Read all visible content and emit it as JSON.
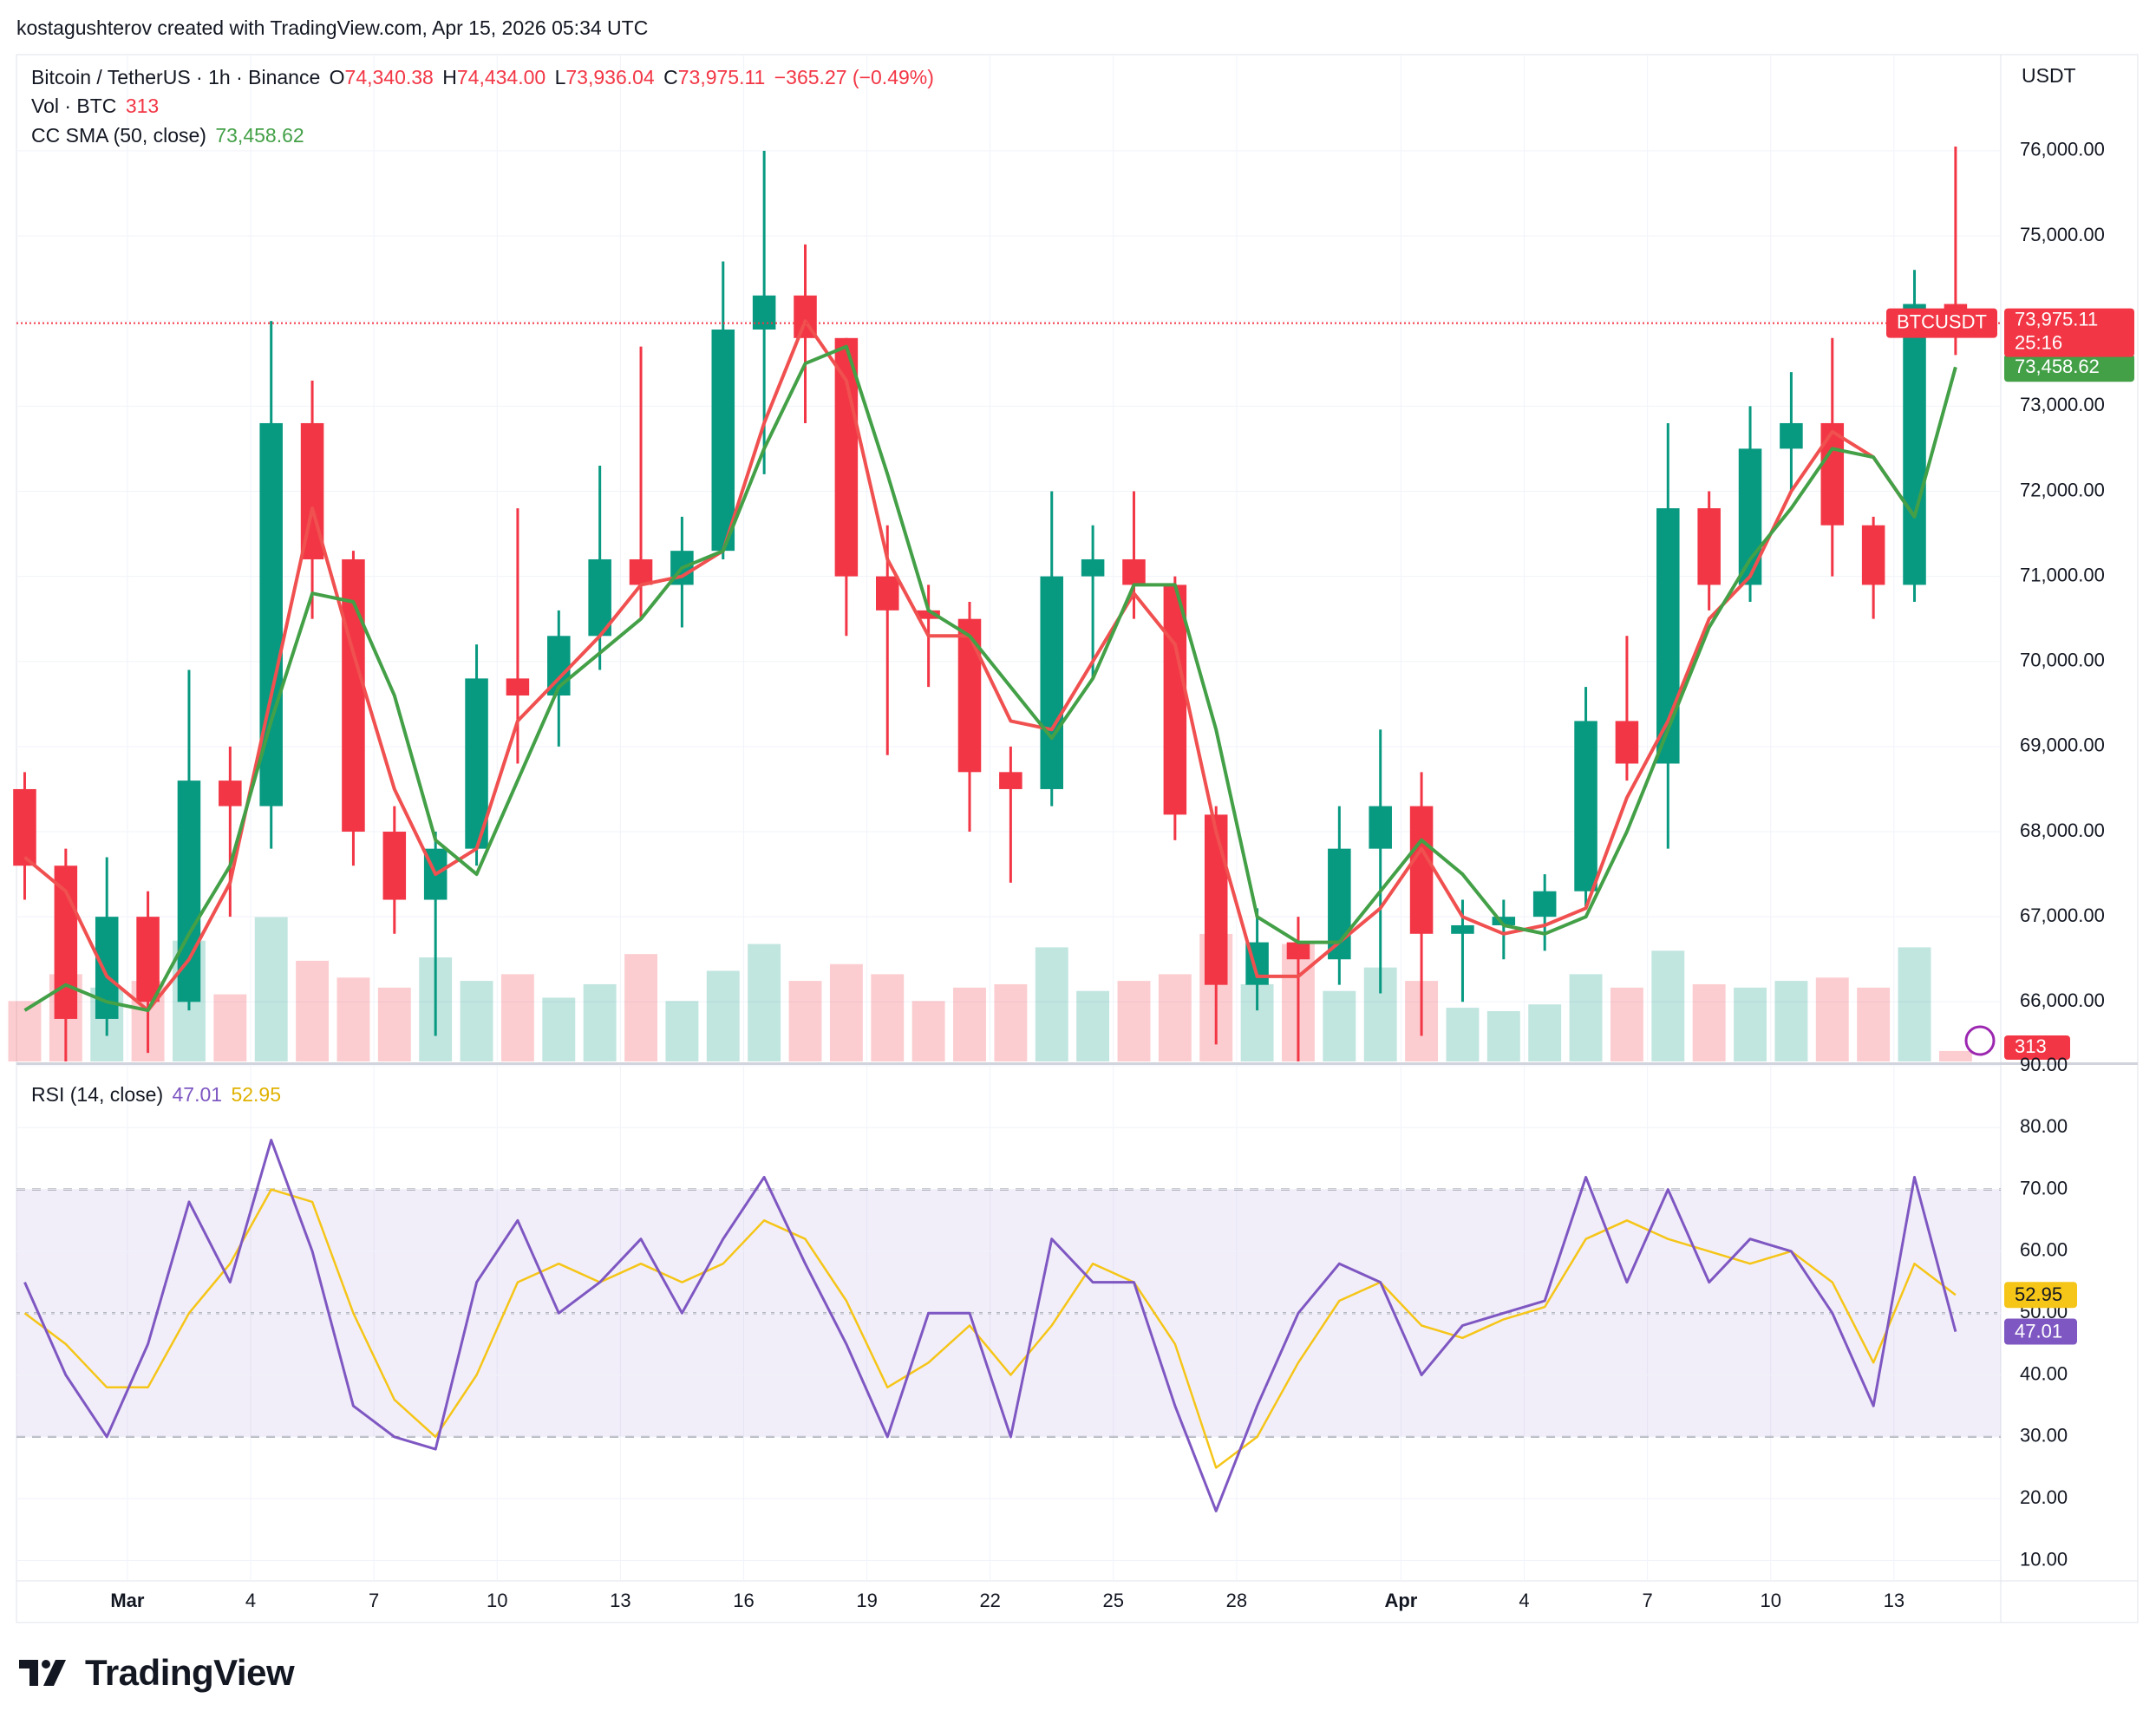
{
  "header": {
    "attribution": "kostagushterov created with TradingView.com, Apr 15, 2026 05:34 UTC",
    "logo": "TradingView"
  },
  "chart_data": [
    {
      "type": "candlestick",
      "title": "Bitcoin / TetherUS · 1h · Binance",
      "legend_ohlc": [
        {
          "key": "O",
          "value": "74,340.38"
        },
        {
          "key": "H",
          "value": "74,434.00"
        },
        {
          "key": "L",
          "value": "73,936.04"
        },
        {
          "key": "C",
          "value": "73,975.11"
        }
      ],
      "change": "−365.27 (−0.49%)",
      "currency": "USDT",
      "symbol_tag": "BTCUSDT",
      "last_close_label": "73,975.11",
      "countdown": "25:16",
      "up_color": "#089981",
      "down_color": "#f23645",
      "grid": true,
      "xlim": [
        -2.7,
        45.6
      ],
      "ylim": [
        65300,
        77130
      ],
      "yticks": [
        {
          "value": 66000,
          "label": "66,000.00"
        },
        {
          "value": 67000,
          "label": "67,000.00"
        },
        {
          "value": 68000,
          "label": "68,000.00"
        },
        {
          "value": 69000,
          "label": "69,000.00"
        },
        {
          "value": 70000,
          "label": "70,000.00"
        },
        {
          "value": 71000,
          "label": "71,000.00"
        },
        {
          "value": 72000,
          "label": "72,000.00"
        },
        {
          "value": 73000,
          "label": "73,000.00"
        },
        {
          "value": 74000,
          "label": "74,000.00"
        },
        {
          "value": 75000,
          "label": "75,000.00"
        },
        {
          "value": 76000,
          "label": "76,000.00"
        }
      ],
      "x": [
        -2.5,
        -1.5,
        -0.5,
        0.5,
        1.5,
        2.5,
        3.5,
        4.5,
        5.5,
        6.5,
        7.5,
        8.5,
        9.5,
        10.5,
        11.5,
        12.5,
        13.5,
        14.5,
        15.5,
        16.5,
        17.5,
        18.5,
        19.5,
        20.5,
        21.5,
        22.5,
        23.5,
        24.5,
        25.5,
        26.5,
        27.5,
        28.5,
        29.5,
        30.5,
        31.5,
        32.5,
        33.5,
        34.5,
        35.5,
        36.5,
        37.5,
        38.5,
        39.5,
        40.5,
        41.5,
        42.5,
        43.5,
        44.5
      ],
      "open": [
        68500,
        67600,
        65800,
        67000,
        66000,
        68600,
        68300,
        72800,
        71200,
        68000,
        67200,
        67800,
        69800,
        69600,
        70300,
        71200,
        70900,
        71300,
        73900,
        74300,
        73800,
        71000,
        70600,
        70500,
        68700,
        68500,
        71000,
        71200,
        70900,
        68200,
        66200,
        66700,
        66500,
        67800,
        68300,
        66800,
        66900,
        67000,
        67300,
        69300,
        68800,
        71800,
        70900,
        72500,
        72800,
        71600,
        70900,
        74200
      ],
      "high": [
        68700,
        67800,
        67700,
        67300,
        69900,
        69000,
        74000,
        73300,
        71300,
        68300,
        68000,
        70200,
        71800,
        70600,
        72300,
        73700,
        71700,
        74700,
        76000,
        74900,
        73800,
        71600,
        70900,
        70700,
        69000,
        72000,
        71600,
        72000,
        71000,
        68300,
        67100,
        67000,
        68300,
        69200,
        68700,
        67200,
        67200,
        67500,
        69700,
        70300,
        72800,
        72000,
        73000,
        73400,
        73800,
        71700,
        74600,
        76050
      ],
      "low": [
        67200,
        65300,
        65600,
        65400,
        65900,
        67000,
        67800,
        70500,
        67600,
        66800,
        65600,
        67600,
        68800,
        69000,
        69900,
        70500,
        70400,
        71200,
        72200,
        72800,
        70300,
        68900,
        69700,
        68000,
        67400,
        68300,
        69800,
        70500,
        67900,
        65500,
        65900,
        65300,
        66200,
        66100,
        65600,
        66000,
        66500,
        66600,
        67100,
        68600,
        67800,
        70600,
        70700,
        72000,
        71000,
        70500,
        70700,
        73600
      ],
      "close": [
        67600,
        65800,
        67000,
        66000,
        68600,
        68300,
        72800,
        71200,
        68000,
        67200,
        67800,
        69800,
        69600,
        70300,
        71200,
        70900,
        71300,
        73900,
        74300,
        73800,
        71000,
        70600,
        70500,
        68700,
        68500,
        71000,
        71200,
        70900,
        68200,
        66200,
        66700,
        66500,
        67800,
        68300,
        66800,
        66900,
        67000,
        67300,
        69300,
        68800,
        71800,
        70900,
        72500,
        72800,
        71600,
        70900,
        74200,
        73975.11
      ],
      "lines": [
        {
          "color": "#f0504f",
          "values": [
            67700,
            67300,
            66300,
            65900,
            66500,
            67400,
            69600,
            71800,
            70100,
            68500,
            67500,
            67800,
            69300,
            69800,
            70300,
            70900,
            71000,
            71300,
            72800,
            74000,
            73300,
            71200,
            70300,
            70300,
            69300,
            69200,
            70000,
            70800,
            70200,
            68000,
            66300,
            66300,
            66700,
            67100,
            67800,
            67000,
            66800,
            66900,
            67100,
            68400,
            69300,
            70500,
            71000,
            72000,
            72700,
            72400,
            71700,
            null
          ]
        },
        {
          "name": "CC SMA (50, close)",
          "color": "#43a047",
          "last_label": "73,458.62",
          "values": [
            65900,
            66200,
            66000,
            65900,
            66800,
            67600,
            69300,
            70800,
            70700,
            69600,
            67900,
            67500,
            68600,
            69700,
            70100,
            70500,
            71100,
            71300,
            72500,
            73500,
            73700,
            72200,
            70600,
            70300,
            69700,
            69100,
            69800,
            70900,
            70900,
            69200,
            67000,
            66700,
            66700,
            67300,
            67900,
            67500,
            66900,
            66800,
            67000,
            68000,
            69200,
            70400,
            71200,
            71800,
            72500,
            72400,
            71700,
            73458.62
          ]
        }
      ],
      "volume": {
        "name": "Vol · BTC",
        "ylim": [
          0,
          30000
        ],
        "values": [
          1800,
          2600,
          2200,
          2400,
          3600,
          2000,
          4300,
          3000,
          2500,
          2200,
          3100,
          2400,
          2600,
          1900,
          2300,
          3200,
          1800,
          2700,
          3500,
          2400,
          2900,
          2600,
          1800,
          2200,
          2300,
          3400,
          2100,
          2400,
          2600,
          3800,
          2300,
          3500,
          2100,
          2800,
          2400,
          1600,
          1500,
          1700,
          2600,
          2200,
          3300,
          2300,
          2200,
          2400,
          2500,
          2200,
          3400,
          313
        ]
      }
    },
    {
      "type": "line",
      "title": "RSI (14, close)",
      "xlim": [
        -2.7,
        45.6
      ],
      "ylim": [
        6.7,
        90
      ],
      "xticks": [
        {
          "value": 0,
          "label": "Mar"
        },
        {
          "value": 3,
          "label": "4"
        },
        {
          "value": 6,
          "label": "7"
        },
        {
          "value": 9,
          "label": "10"
        },
        {
          "value": 12,
          "label": "13"
        },
        {
          "value": 15,
          "label": "16"
        },
        {
          "value": 18,
          "label": "19"
        },
        {
          "value": 21,
          "label": "22"
        },
        {
          "value": 24,
          "label": "25"
        },
        {
          "value": 27,
          "label": "28"
        },
        {
          "value": 31,
          "label": "Apr"
        },
        {
          "value": 34,
          "label": "4"
        },
        {
          "value": 37,
          "label": "7"
        },
        {
          "value": 40,
          "label": "10"
        },
        {
          "value": 43,
          "label": "13"
        }
      ],
      "yticks": [
        {
          "value": 10,
          "label": "10.00"
        },
        {
          "value": 20,
          "label": "20.00"
        },
        {
          "value": 30,
          "label": "30.00"
        },
        {
          "value": 40,
          "label": "40.00"
        },
        {
          "value": 50,
          "label": "50.00"
        },
        {
          "value": 60,
          "label": "60.00"
        },
        {
          "value": 70,
          "label": "70.00"
        },
        {
          "value": 80,
          "label": "80.00"
        },
        {
          "value": 90,
          "label": "90.00"
        }
      ],
      "levels": [
        30,
        50,
        70
      ],
      "band_color": "#7e57c2",
      "x": [
        -2.5,
        -1.5,
        -0.5,
        0.5,
        1.5,
        2.5,
        3.5,
        4.5,
        5.5,
        6.5,
        7.5,
        8.5,
        9.5,
        10.5,
        11.5,
        12.5,
        13.5,
        14.5,
        15.5,
        16.5,
        17.5,
        18.5,
        19.5,
        20.5,
        21.5,
        22.5,
        23.5,
        24.5,
        25.5,
        26.5,
        27.5,
        28.5,
        29.5,
        30.5,
        31.5,
        32.5,
        33.5,
        34.5,
        35.5,
        36.5,
        37.5,
        38.5,
        39.5,
        40.5,
        41.5,
        42.5,
        43.5,
        44.5
      ],
      "series": [
        {
          "color": "#7e57c2",
          "values": [
            55,
            40,
            30,
            45,
            68,
            55,
            78,
            60,
            35,
            30,
            28,
            55,
            65,
            50,
            55,
            62,
            50,
            62,
            72,
            58,
            45,
            30,
            50,
            50,
            30,
            62,
            55,
            55,
            35,
            18,
            35,
            50,
            58,
            55,
            40,
            48,
            50,
            52,
            72,
            55,
            70,
            55,
            62,
            60,
            50,
            35,
            72,
            47.01
          ]
        },
        {
          "color": "#f5c518",
          "values": [
            50,
            45,
            38,
            38,
            50,
            58,
            70,
            68,
            50,
            36,
            30,
            40,
            55,
            58,
            55,
            58,
            55,
            58,
            65,
            62,
            52,
            38,
            42,
            48,
            40,
            48,
            58,
            55,
            45,
            25,
            30,
            42,
            52,
            55,
            48,
            46,
            49,
            51,
            62,
            65,
            62,
            60,
            58,
            60,
            55,
            42,
            58,
            52.95
          ]
        }
      ]
    }
  ]
}
